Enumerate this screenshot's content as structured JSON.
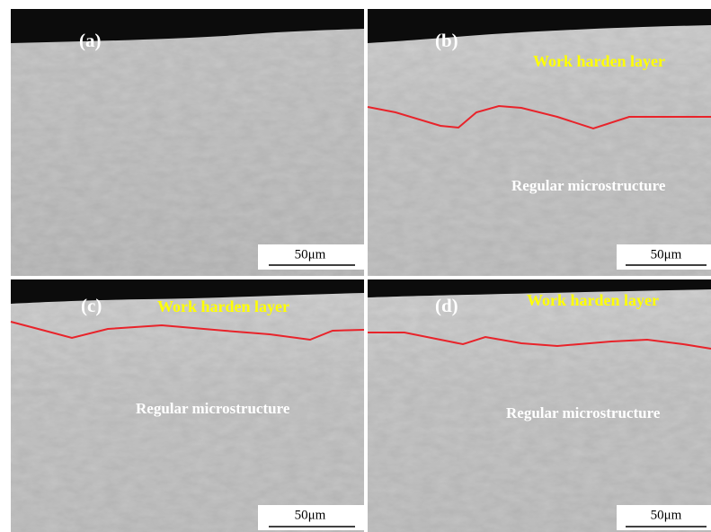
{
  "panels": [
    {
      "label": "(a)",
      "scale_bar": "50μm"
    },
    {
      "label": "(b)",
      "annotations": [
        "Work harden layer",
        "Regular microstructure"
      ],
      "scale_bar": "50μm"
    },
    {
      "label": "(c)",
      "annotations": [
        "Work harden layer",
        "Regular microstructure"
      ],
      "scale_bar": "50μm"
    },
    {
      "label": "(d)",
      "annotations": [
        "Work harden layer",
        "Regular microstructure"
      ],
      "scale_bar": "50μm"
    }
  ]
}
